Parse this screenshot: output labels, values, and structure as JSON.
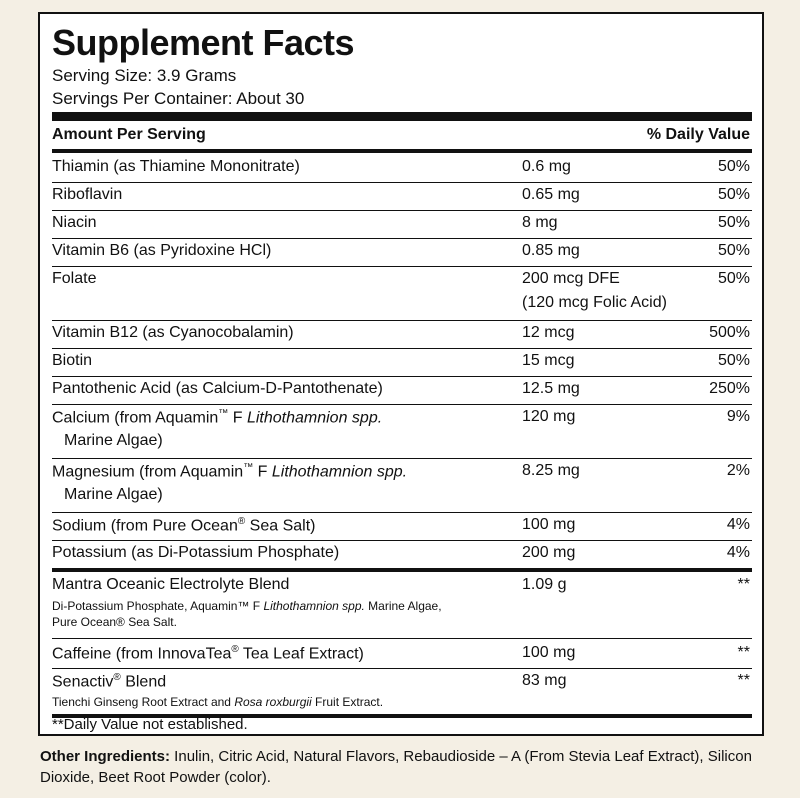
{
  "title": "Supplement Facts",
  "serving_size": "Serving Size: 3.9 Grams",
  "servings_per_container": "Servings Per Container: About 30",
  "header": {
    "amount": "Amount Per Serving",
    "dv": "% Daily Value"
  },
  "nutrients": [
    {
      "name": "Thiamin (as Thiamine Mononitrate)",
      "amount": "0.6 mg",
      "dv": "50%"
    },
    {
      "name": "Riboflavin",
      "amount": "0.65 mg",
      "dv": "50%"
    },
    {
      "name": "Niacin",
      "amount": "8 mg",
      "dv": "50%"
    },
    {
      "name": "Vitamin B6 (as Pyridoxine HCl)",
      "amount": "0.85 mg",
      "dv": "50%"
    },
    {
      "name": "Folate",
      "amount": "200 mcg DFE",
      "amount2": "(120 mcg Folic Acid)",
      "dv": "50%"
    },
    {
      "name": "Vitamin B12 (as Cyanocobalamin)",
      "amount": "12 mcg",
      "dv": "500%"
    },
    {
      "name": "Biotin",
      "amount": "15 mcg",
      "dv": "50%"
    },
    {
      "name": "Pantothenic Acid (as Calcium-D-Pantothenate)",
      "amount": "12.5 mg",
      "dv": "250%"
    },
    {
      "name_a": "Calcium (from Aquamin",
      "name_tm": "™",
      "name_b": " F ",
      "name_i": "Lithothamnion spp.",
      "name_sub": "Marine Algae)",
      "amount": "120 mg",
      "dv": "9%"
    },
    {
      "name_a": "Magnesium (from Aquamin",
      "name_tm": "™",
      "name_b": " F ",
      "name_i": "Lithothamnion spp.",
      "name_sub": "Marine Algae)",
      "amount": "8.25 mg",
      "dv": "2%"
    },
    {
      "name_a": "Sodium (from Pure Ocean",
      "name_r": "®",
      "name_b": " Sea Salt)",
      "amount": "100 mg",
      "dv": "4%"
    },
    {
      "name": "Potassium (as Di-Potassium Phosphate)",
      "amount": "200 mg",
      "dv": "4%"
    }
  ],
  "blends": [
    {
      "name": "Mantra Oceanic Electrolyte Blend",
      "amount": "1.09 g",
      "dv": "**",
      "desc_a": "Di-Potassium Phosphate, Aquamin™ F ",
      "desc_i": "Lithothamnion spp.",
      "desc_b": " Marine Algae,",
      "desc_c": "Pure Ocean® Sea Salt."
    },
    {
      "name_a": "Caffeine (from InnovaTea",
      "name_r": "®",
      "name_b": " Tea Leaf Extract)",
      "amount": "100 mg",
      "dv": "**"
    },
    {
      "name_a": "Senactiv",
      "name_r": "®",
      "name_b": " Blend",
      "amount": "83 mg",
      "dv": "**",
      "desc_a": "Tienchi Ginseng Root Extract and ",
      "desc_i": "Rosa roxburgii",
      "desc_b": " Fruit Extract."
    }
  ],
  "footnote": "**Daily Value not established.",
  "other_label": "Other Ingredients:",
  "other_text": " Inulin, Citric Acid, Natural Flavors, Rebaudioside – A (From Stevia Leaf Extract), Silicon Dioxide, Beet Root Powder (color)."
}
